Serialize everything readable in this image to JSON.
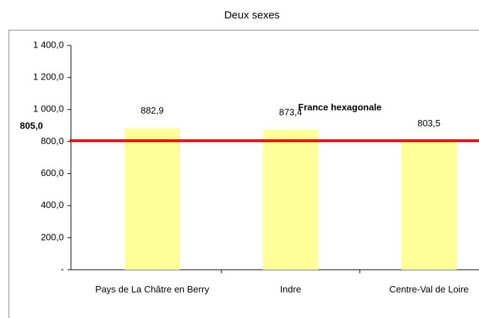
{
  "chart_data": {
    "type": "bar",
    "title": "Deux sexes",
    "categories": [
      "Pays de La Châtre en Berry",
      "Indre",
      "Centre-Val de Loire"
    ],
    "values": [
      882.9,
      873.4,
      803.5
    ],
    "value_labels": [
      "882,9",
      "873,4",
      "803,5"
    ],
    "color": "#ffff99",
    "ylim": [
      0,
      1400
    ],
    "yticks": [
      {
        "value": 0,
        "label": "-"
      },
      {
        "value": 200,
        "label": "200,0"
      },
      {
        "value": 400,
        "label": "400,0"
      },
      {
        "value": 600,
        "label": "600,0"
      },
      {
        "value": 800,
        "label": "800,0"
      },
      {
        "value": 1000,
        "label": "1 000,0"
      },
      {
        "value": 1200,
        "label": "1 200,0"
      },
      {
        "value": 1400,
        "label": "1 400,0"
      }
    ],
    "reference_line": {
      "value": 805,
      "label": "805,0",
      "name": "France hexagonale",
      "color": "#ff0000"
    }
  }
}
